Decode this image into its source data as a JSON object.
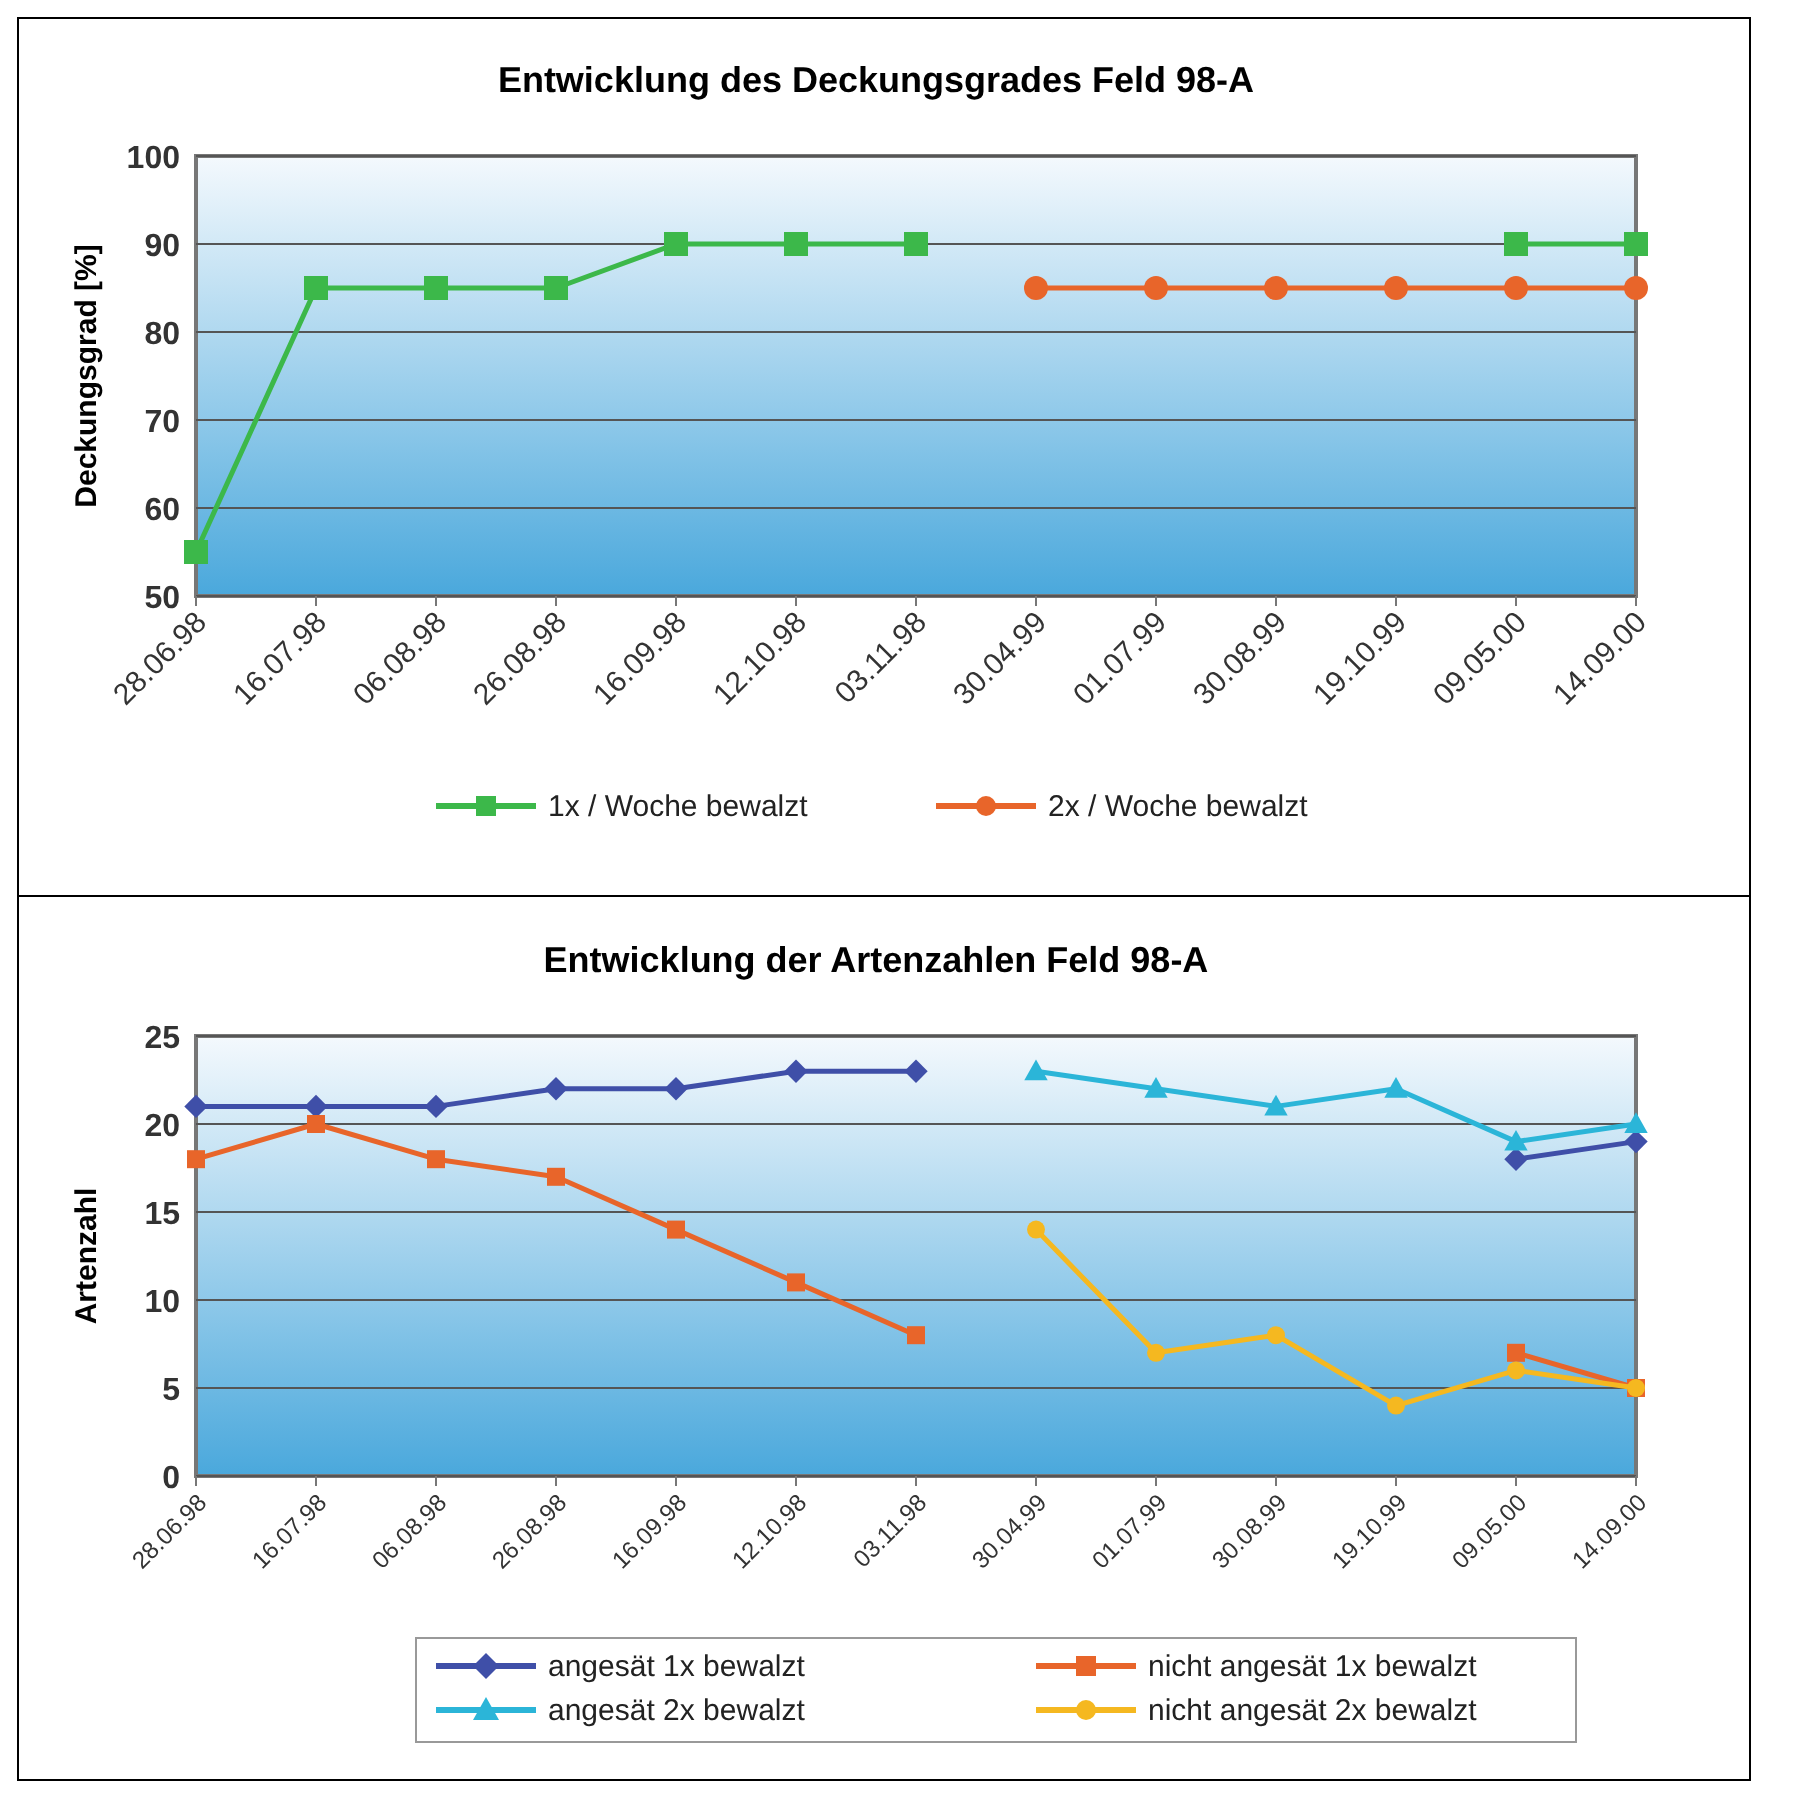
{
  "chart_data": [
    {
      "type": "line",
      "title": "Entwicklung des Deckungsgrades Feld 98-A",
      "ylabel": "Deckungsgrad [%]",
      "categories": [
        "28.06.98",
        "16.07.98",
        "06.08.98",
        "26.08.98",
        "16.09.98",
        "12.10.98",
        "03.11.98",
        "30.04.99",
        "01.07.99",
        "30.08.99",
        "19.10.99",
        "09.05.00",
        "14.09.00"
      ],
      "ylim": [
        50,
        100
      ],
      "yticks": [
        50,
        60,
        70,
        80,
        90,
        100
      ],
      "grid": "y",
      "legend": "bottom",
      "series": [
        {
          "name": "1x / Woche bewalzt",
          "color": "#3cb84a",
          "marker": "square",
          "values": [
            55,
            85,
            85,
            85,
            90,
            90,
            90,
            null,
            null,
            null,
            null,
            90,
            90
          ]
        },
        {
          "name": "2x / Woche bewalzt",
          "color": "#e8652a",
          "marker": "circle",
          "values": [
            null,
            null,
            null,
            null,
            null,
            null,
            null,
            85,
            85,
            85,
            85,
            85,
            85
          ]
        }
      ]
    },
    {
      "type": "line",
      "title": "Entwicklung der Artenzahlen Feld 98-A",
      "ylabel": "Artenzahl",
      "categories": [
        "28.06.98",
        "16.07.98",
        "06.08.98",
        "26.08.98",
        "16.09.98",
        "12.10.98",
        "03.11.98",
        "30.04.99",
        "01.07.99",
        "30.08.99",
        "19.10.99",
        "09.05.00",
        "14.09.00"
      ],
      "ylim": [
        0,
        25
      ],
      "yticks": [
        0,
        5,
        10,
        15,
        20,
        25
      ],
      "grid": "y",
      "legend": "bottom",
      "series": [
        {
          "name": "angesät 1x bewalzt",
          "color": "#3f4fa8",
          "marker": "diamond",
          "values": [
            21,
            21,
            21,
            22,
            22,
            23,
            23,
            null,
            null,
            null,
            null,
            18,
            19
          ]
        },
        {
          "name": "nicht angesät 1x bewalzt",
          "color": "#e8652a",
          "marker": "square",
          "values": [
            18,
            20,
            18,
            17,
            14,
            11,
            8,
            null,
            null,
            null,
            null,
            7,
            5
          ]
        },
        {
          "name": "angesät 2x bewalzt",
          "color": "#2bb5d8",
          "marker": "triangle",
          "values": [
            null,
            null,
            null,
            null,
            null,
            null,
            null,
            23,
            22,
            21,
            22,
            19,
            20
          ]
        },
        {
          "name": "nicht angesät 2x bewalzt",
          "color": "#f5b820",
          "marker": "circle",
          "values": [
            null,
            null,
            null,
            null,
            null,
            null,
            null,
            14,
            7,
            8,
            4,
            6,
            5
          ]
        }
      ]
    }
  ]
}
